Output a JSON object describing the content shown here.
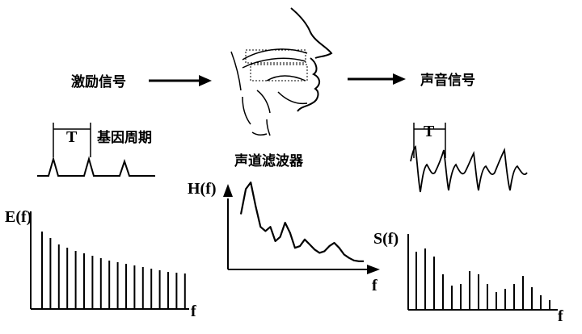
{
  "labels": {
    "excitation": "激励信号",
    "sound": "声音信号",
    "tract_filter": "声道滤波器",
    "pitch_period": "基因周期",
    "period_T_left": "T",
    "period_T_right": "T"
  },
  "axes": {
    "E": {
      "y_label": "E(f)",
      "x_label": "f"
    },
    "H": {
      "y_label": "H(f)",
      "x_label": "f"
    },
    "S": {
      "y_label": "S(f)",
      "x_label": "f"
    }
  },
  "colors": {
    "ink": "#000000",
    "background": "#ffffff"
  },
  "icons": [
    "arrow-right-icon",
    "vocal-tract-head-icon"
  ],
  "chart_data": [
    {
      "type": "bar",
      "id": "excitation-spectrum",
      "ylabel": "E(f)",
      "xlabel": "f",
      "values": [
        96,
        88,
        80,
        76,
        72,
        69,
        66,
        63,
        60,
        58,
        56,
        54,
        52,
        50,
        48,
        46,
        45,
        44
      ]
    },
    {
      "type": "line",
      "id": "vocal-tract-response",
      "ylabel": "H(f)",
      "xlabel": "f",
      "x": [
        0,
        4,
        8,
        12,
        16,
        20,
        24,
        28,
        32,
        36,
        40,
        44,
        48,
        52,
        56,
        60,
        64,
        68,
        72,
        76,
        80,
        84,
        88,
        92,
        96,
        100
      ],
      "y": [
        60,
        90,
        98,
        70,
        45,
        40,
        45,
        28,
        33,
        50,
        38,
        20,
        22,
        30,
        24,
        18,
        14,
        16,
        22,
        26,
        20,
        12,
        8,
        5,
        4,
        4
      ]
    },
    {
      "type": "bar",
      "id": "sound-spectrum",
      "ylabel": "S(f)",
      "xlabel": "f",
      "values": [
        72,
        76,
        66,
        44,
        30,
        32,
        48,
        44,
        32,
        22,
        26,
        32,
        42,
        28,
        18,
        12
      ]
    }
  ]
}
